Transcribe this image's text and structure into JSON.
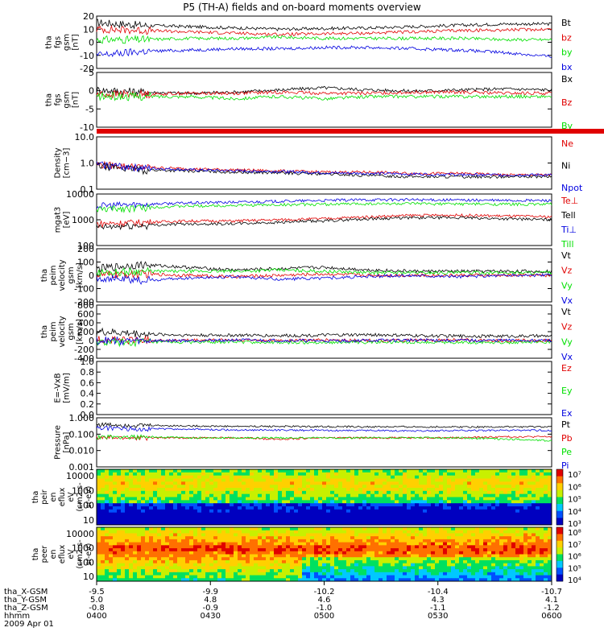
{
  "title": "P5 (TH-A) fields and on-board moments overview",
  "colors": {
    "black": "#000000",
    "red": "#e00000",
    "green": "#00e000",
    "blue": "#0000e0",
    "gray": "#7f7f7f"
  },
  "time_axis": {
    "ticks": [
      "0400",
      "0430",
      "0500",
      "0530",
      "0600"
    ],
    "rows": [
      {
        "label": "tha_X-GSM",
        "values": [
          "-9.5",
          "-9.9",
          "-10.2",
          "-10.4",
          "-10.7"
        ]
      },
      {
        "label": "tha_Y-GSM",
        "values": [
          "5.0",
          "4.8",
          "4.6",
          "4.3",
          "4.1"
        ]
      },
      {
        "label": "tha_Z-GSM",
        "values": [
          "-0.8",
          "-0.9",
          "-1.0",
          "-1.1",
          "-1.2"
        ]
      },
      {
        "label": "hhmm",
        "values": [
          "0400",
          "0430",
          "0500",
          "0530",
          "0600"
        ]
      }
    ],
    "date": "2009 Apr 01"
  },
  "chart_data": [
    {
      "id": "fgs",
      "type": "line",
      "ylabel": [
        "tha",
        "fgs",
        "gsm",
        "[nT]"
      ],
      "ylim": [
        -20,
        20
      ],
      "yticks": [
        "20",
        "10",
        "0",
        "-10",
        "-20"
      ],
      "log": false,
      "x": [
        0,
        10,
        20,
        30,
        40,
        50,
        60,
        70,
        80,
        90,
        100
      ],
      "series": [
        {
          "name": "Bt",
          "color": "black",
          "values": [
            15,
            13,
            12,
            11,
            10,
            10.5,
            11,
            12,
            13,
            14,
            14
          ]
        },
        {
          "name": "bz",
          "color": "red",
          "values": [
            10,
            9,
            8,
            7,
            6,
            6.5,
            7,
            8,
            9,
            9.5,
            10
          ]
        },
        {
          "name": "by",
          "color": "green",
          "values": [
            2,
            2,
            3,
            3,
            4,
            3,
            3,
            3,
            3,
            2,
            2
          ]
        },
        {
          "name": "bx",
          "color": "blue",
          "values": [
            -10,
            -7,
            -6,
            -5,
            -5,
            -4,
            -4,
            -5,
            -6,
            -8,
            -11
          ]
        }
      ]
    },
    {
      "id": "fgl",
      "type": "line",
      "ylabel": [
        "tha",
        "fgs",
        "gsm",
        "[nT]"
      ],
      "ylim": [
        -15,
        10
      ],
      "yticks": [
        "5",
        "0",
        "-5",
        "-10"
      ],
      "log": false,
      "x": [
        0,
        10,
        20,
        30,
        40,
        50,
        60,
        70,
        80,
        90,
        100
      ],
      "series": [
        {
          "name": "Bx",
          "color": "black",
          "values": [
            2,
            1,
            0.5,
            1,
            2,
            3,
            2,
            1.5,
            2,
            2.5,
            2
          ]
        },
        {
          "name": "Bz",
          "color": "red",
          "values": [
            0,
            0,
            0.5,
            0.5,
            1,
            0.5,
            0.5,
            1,
            1,
            0.5,
            0.5
          ]
        },
        {
          "name": "By",
          "color": "green",
          "values": [
            -1,
            -1,
            -1,
            -2,
            -1,
            -2,
            -1,
            -1,
            -1,
            -1,
            -1
          ]
        }
      ]
    },
    {
      "id": "density",
      "type": "line",
      "ylabel": [
        "Density",
        "[cm−3]"
      ],
      "ylim": [
        0.1,
        10
      ],
      "yticks": [
        "10.0",
        "1.0",
        "0.1"
      ],
      "log": true,
      "x": [
        0,
        10,
        20,
        30,
        40,
        50,
        60,
        70,
        80,
        90,
        100
      ],
      "series": [
        {
          "name": "Ne",
          "color": "red",
          "values": [
            0.9,
            0.7,
            0.6,
            0.55,
            0.5,
            0.45,
            0.45,
            0.4,
            0.4,
            0.35,
            0.35
          ]
        },
        {
          "name": "Ni",
          "color": "black",
          "values": [
            0.8,
            0.55,
            0.5,
            0.45,
            0.42,
            0.38,
            0.33,
            0.3,
            0.3,
            0.3,
            0.3
          ]
        },
        {
          "name": "Npot",
          "color": "blue",
          "values": [
            0.9,
            0.65,
            0.55,
            0.5,
            0.48,
            0.42,
            0.4,
            0.38,
            0.36,
            0.35,
            0.35
          ]
        }
      ]
    },
    {
      "id": "temp",
      "type": "line",
      "ylabel": [
        "mgat3",
        "[eV]"
      ],
      "ylim": [
        100,
        10000
      ],
      "yticks": [
        "10000",
        "1000",
        "100"
      ],
      "log": true,
      "x": [
        0,
        10,
        20,
        30,
        40,
        50,
        60,
        70,
        80,
        90,
        100
      ],
      "series": [
        {
          "name": "Te⊥",
          "color": "red",
          "values": [
            700,
            800,
            900,
            900,
            1000,
            1100,
            1300,
            1500,
            1500,
            1400,
            1300
          ]
        },
        {
          "name": "Tell",
          "color": "black",
          "values": [
            500,
            600,
            700,
            700,
            800,
            900,
            1100,
            1200,
            1200,
            1100,
            1000
          ]
        },
        {
          "name": "Ti⊥",
          "color": "blue",
          "values": [
            3500,
            4000,
            4500,
            4800,
            5200,
            5600,
            6000,
            6000,
            5800,
            5600,
            5600
          ]
        },
        {
          "name": "Till",
          "color": "green",
          "values": [
            2500,
            3000,
            3400,
            3600,
            3800,
            4000,
            4200,
            4200,
            4100,
            4000,
            4000
          ]
        }
      ]
    },
    {
      "id": "velesa",
      "type": "line",
      "ylabel": [
        "tha",
        "peim",
        "velocity",
        "gsm",
        "[km/s]"
      ],
      "ylim": [
        -200,
        200
      ],
      "yticks": [
        "200",
        "100",
        "0",
        "-100",
        "-200"
      ],
      "log": false,
      "x": [
        0,
        10,
        20,
        30,
        40,
        50,
        60,
        70,
        80,
        90,
        100
      ],
      "series": [
        {
          "name": "Vt",
          "color": "black",
          "values": [
            50,
            80,
            60,
            40,
            50,
            60,
            40,
            30,
            30,
            30,
            30
          ]
        },
        {
          "name": "Vz",
          "color": "red",
          "values": [
            0,
            10,
            0,
            -10,
            0,
            10,
            0,
            0,
            0,
            0,
            0
          ]
        },
        {
          "name": "Vy",
          "color": "green",
          "values": [
            20,
            30,
            30,
            30,
            40,
            30,
            20,
            20,
            20,
            20,
            20
          ]
        },
        {
          "name": "Vx",
          "color": "blue",
          "values": [
            -20,
            -40,
            -20,
            -10,
            -30,
            -20,
            -10,
            0,
            -10,
            0,
            0
          ]
        }
      ]
    },
    {
      "id": "velesr",
      "type": "line",
      "ylabel": [
        "tha",
        "peim",
        "velocity",
        "gsm",
        "[km/s]"
      ],
      "ylim": [
        -400,
        800
      ],
      "yticks": [
        "800",
        "600",
        "400",
        "200",
        "0",
        "-200",
        "-400"
      ],
      "log": false,
      "x": [
        0,
        10,
        20,
        30,
        40,
        50,
        60,
        70,
        80,
        90,
        100
      ],
      "series": [
        {
          "name": "Vt",
          "color": "black",
          "values": [
            200,
            150,
            120,
            120,
            110,
            120,
            130,
            110,
            100,
            100,
            100
          ]
        },
        {
          "name": "Vz",
          "color": "red",
          "values": [
            20,
            10,
            0,
            10,
            0,
            10,
            0,
            0,
            10,
            0,
            0
          ]
        },
        {
          "name": "Vy",
          "color": "green",
          "values": [
            -50,
            -40,
            -40,
            -30,
            -50,
            -40,
            -40,
            -40,
            -40,
            -40,
            -30
          ]
        },
        {
          "name": "Vx",
          "color": "blue",
          "values": [
            0,
            -10,
            0,
            10,
            0,
            -10,
            0,
            10,
            0,
            0,
            0
          ]
        }
      ]
    },
    {
      "id": "efield",
      "type": "line",
      "ylabel": [
        "E=-VxB",
        "[mV/m]"
      ],
      "ylim": [
        0,
        1
      ],
      "yticks": [
        "1.0",
        "0.8",
        "0.6",
        "0.4",
        "0.2",
        "0.0"
      ],
      "log": false,
      "x": [],
      "series": [
        {
          "name": "Ez",
          "color": "red",
          "values": []
        },
        {
          "name": "Ey",
          "color": "green",
          "values": []
        },
        {
          "name": "Ex",
          "color": "blue",
          "values": []
        }
      ]
    },
    {
      "id": "pressure",
      "type": "line",
      "ylabel": [
        "Pressure",
        "[nPa]"
      ],
      "ylim": [
        0.001,
        1
      ],
      "yticks": [
        "1.000",
        "0.100",
        "0.010",
        "0.001"
      ],
      "log": true,
      "x": [
        0,
        10,
        20,
        30,
        40,
        50,
        60,
        70,
        80,
        90,
        100
      ],
      "series": [
        {
          "name": "Pt",
          "color": "black",
          "values": [
            0.4,
            0.35,
            0.32,
            0.3,
            0.3,
            0.29,
            0.28,
            0.28,
            0.28,
            0.28,
            0.28
          ]
        },
        {
          "name": "Pb",
          "color": "red",
          "values": [
            0.06,
            0.06,
            0.06,
            0.06,
            0.05,
            0.06,
            0.06,
            0.06,
            0.06,
            0.07,
            0.07
          ]
        },
        {
          "name": "Pe",
          "color": "green",
          "values": [
            0.07,
            0.07,
            0.06,
            0.06,
            0.06,
            0.06,
            0.06,
            0.06,
            0.06,
            0.05,
            0.04
          ]
        },
        {
          "name": "Pi",
          "color": "blue",
          "values": [
            0.25,
            0.22,
            0.2,
            0.18,
            0.18,
            0.17,
            0.17,
            0.16,
            0.17,
            0.17,
            0.17
          ]
        }
      ]
    }
  ],
  "spectrograms": [
    {
      "id": "peir",
      "type": "heatmap",
      "ylabel": [
        "tha",
        "peir",
        "en",
        "eflux",
        "eV",
        "(cm2-s-",
        "sr-eV)"
      ],
      "yticks": [
        "10000",
        "1000",
        "100",
        "10"
      ],
      "colorbar": [
        "10⁷",
        "10⁶",
        "10⁵",
        "10⁴",
        "10³"
      ]
    },
    {
      "id": "peer",
      "type": "heatmap",
      "ylabel": [
        "tha",
        "peer",
        "en",
        "eflux",
        "eV",
        "(cm2-s-",
        "sr-eV)"
      ],
      "yticks": [
        "10000",
        "1000",
        "100",
        "10"
      ],
      "colorbar": [
        "10⁸",
        "10⁷",
        "10⁶",
        "10⁵",
        "10⁴"
      ]
    }
  ]
}
